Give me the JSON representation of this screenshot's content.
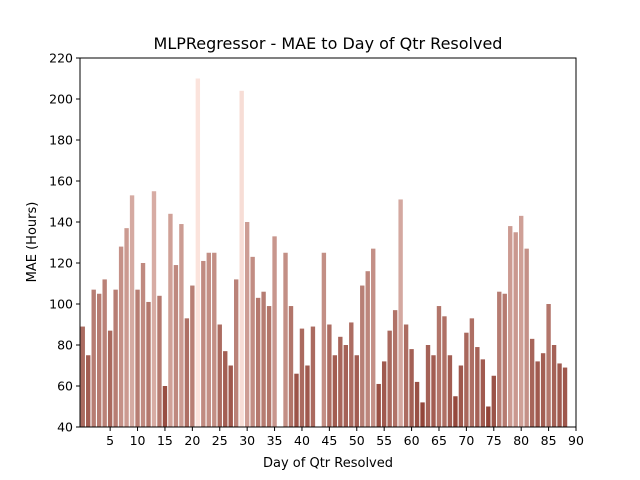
{
  "chart_data": {
    "type": "bar",
    "title": "MLPRegressor - MAE to Day of Qtr Resolved",
    "xlabel": "Day of Qtr Resolved",
    "ylabel": "MAE (Hours)",
    "ylim": [
      40,
      220
    ],
    "xlim": [
      -0.5,
      90
    ],
    "yticks": [
      40,
      60,
      80,
      100,
      120,
      140,
      160,
      180,
      200,
      220
    ],
    "xticks": [
      5,
      10,
      15,
      20,
      25,
      30,
      35,
      40,
      45,
      50,
      55,
      60,
      65,
      70,
      75,
      80,
      85,
      90
    ],
    "grid": false,
    "categories": [
      0,
      1,
      2,
      3,
      4,
      5,
      6,
      7,
      8,
      9,
      10,
      11,
      12,
      13,
      14,
      15,
      16,
      17,
      18,
      19,
      20,
      21,
      22,
      23,
      24,
      25,
      26,
      27,
      28,
      29,
      30,
      31,
      32,
      33,
      34,
      35,
      36,
      37,
      38,
      39,
      40,
      41,
      42,
      43,
      44,
      45,
      46,
      47,
      48,
      49,
      50,
      51,
      52,
      53,
      54,
      55,
      56,
      57,
      58,
      59,
      60,
      61,
      62,
      63,
      64,
      65,
      66,
      67,
      68,
      69,
      70,
      71,
      72,
      73,
      74,
      75,
      76,
      77,
      78,
      79,
      80,
      81,
      82,
      83,
      84,
      85,
      86,
      87,
      88,
      89
    ],
    "values": [
      89,
      75,
      107,
      105,
      112,
      87,
      107,
      128,
      137,
      153,
      107,
      120,
      101,
      155,
      104,
      60,
      144,
      119,
      139,
      93,
      109,
      210,
      121,
      125,
      125,
      90,
      77,
      70,
      112,
      204,
      140,
      123,
      103,
      106,
      99,
      133,
      40,
      125,
      99,
      66,
      88,
      70,
      89,
      40,
      125,
      90,
      75,
      84,
      80,
      91,
      75,
      109,
      116,
      127,
      61,
      72,
      87,
      97,
      151,
      90,
      78,
      62,
      52,
      80,
      75,
      99,
      94,
      75,
      55,
      70,
      86,
      93,
      79,
      73,
      50,
      65,
      106,
      105,
      138,
      135,
      143,
      127,
      83,
      72,
      76,
      100,
      80,
      71,
      69,
      40
    ],
    "colors": {
      "low": "#8b3a2e",
      "high": "#fbe3dc",
      "background": "#ffffff",
      "axis": "#000000"
    }
  }
}
